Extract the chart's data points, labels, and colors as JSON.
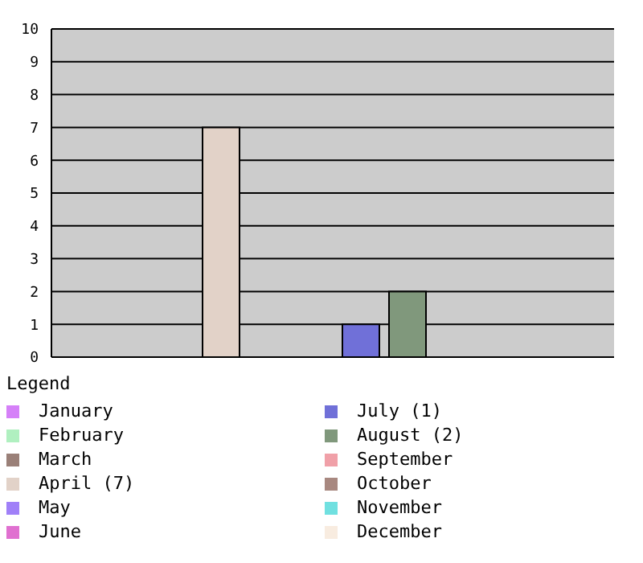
{
  "chart_data": {
    "type": "bar",
    "categories": [
      null
    ],
    "legend_title": "Legend",
    "legend": "bottom",
    "grid": "y",
    "ylim": [
      0,
      10
    ],
    "yticks": [
      0,
      1,
      2,
      3,
      4,
      5,
      6,
      7,
      8,
      9,
      10
    ],
    "series": [
      {
        "name": "January",
        "color": "#d580f8",
        "values": [
          0
        ]
      },
      {
        "name": "February",
        "color": "#b0f0c0",
        "values": [
          0
        ]
      },
      {
        "name": "March",
        "color": "#9a8078",
        "values": [
          0
        ]
      },
      {
        "name": "April (7)",
        "color": "#e2d2c8",
        "values": [
          7
        ]
      },
      {
        "name": "May",
        "color": "#a080f8",
        "values": [
          0
        ]
      },
      {
        "name": "June",
        "color": "#e070d0",
        "values": [
          0
        ]
      },
      {
        "name": "July (1)",
        "color": "#7070d8",
        "values": [
          1
        ]
      },
      {
        "name": "August (2)",
        "color": "#80987c",
        "values": [
          2
        ]
      },
      {
        "name": "September",
        "color": "#f0a0a8",
        "values": [
          0
        ]
      },
      {
        "name": "October",
        "color": "#a88880",
        "values": [
          0
        ]
      },
      {
        "name": "November",
        "color": "#70e0e0",
        "values": [
          0
        ]
      },
      {
        "name": "December",
        "color": "#f8ece0",
        "values": [
          0
        ]
      }
    ]
  }
}
